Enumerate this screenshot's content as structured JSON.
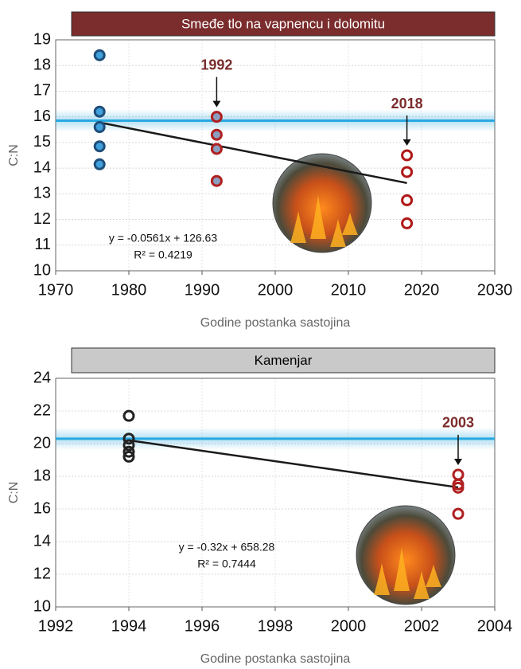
{
  "chart_data": [
    {
      "type": "scatter",
      "title": "Smeđe tlo na vapnencu i dolomitu",
      "title_color": "#7b2c2c",
      "title_text_color": "#ffffff",
      "xlabel": "Godine postanka sastojina",
      "ylabel": "C:N",
      "xlim": [
        1970,
        2030
      ],
      "xticks": [
        1970,
        1980,
        1990,
        2000,
        2010,
        2020,
        2030
      ],
      "ylim": [
        10,
        19
      ],
      "yticks": [
        10,
        11,
        12,
        13,
        14,
        15,
        16,
        17,
        18,
        19
      ],
      "grid": true,
      "series": [
        {
          "color": "#1f4e79",
          "fill": "#3fa0dc",
          "x": [
            1976,
            1976,
            1976,
            1976,
            1976
          ],
          "values": [
            18.4,
            16.2,
            15.6,
            14.85,
            14.15
          ]
        },
        {
          "color": "#b02020",
          "fill": "#8a9fc0",
          "x": [
            1992,
            1992,
            1992,
            1992
          ],
          "values": [
            16.0,
            15.3,
            14.75,
            13.5
          ]
        },
        {
          "color": "#b01818",
          "fill": "#ffffff",
          "x": [
            2018,
            2018,
            2018,
            2018
          ],
          "values": [
            14.5,
            13.85,
            12.75,
            11.85
          ]
        }
      ],
      "reference_line": 15.85,
      "reference_color": "#29a8e0",
      "trendline": {
        "x": [
          1976,
          2018
        ],
        "values": [
          15.78,
          13.42
        ],
        "color": "#1a1a1a"
      },
      "annotations": [
        {
          "label": "1992",
          "x": 1992
        },
        {
          "label": "2018",
          "x": 2018
        }
      ],
      "equation": [
        "y = -0.0561x + 126.63",
        "R² = 0.4219"
      ]
    },
    {
      "type": "scatter",
      "title": "Kamenjar",
      "title_color": "#c9c9c9",
      "title_text_color": "#000000",
      "xlabel": "Godine postanka sastojina",
      "ylabel": "C:N",
      "xlim": [
        1992,
        2004
      ],
      "xticks": [
        1992,
        1994,
        1996,
        1998,
        2000,
        2002,
        2004
      ],
      "ylim": [
        10,
        24
      ],
      "yticks": [
        10,
        12,
        14,
        16,
        18,
        20,
        22,
        24
      ],
      "grid": true,
      "series": [
        {
          "color": "#222222",
          "fill": "none",
          "x": [
            1994,
            1994,
            1994,
            1994,
            1994
          ],
          "values": [
            21.7,
            20.3,
            19.9,
            19.5,
            19.2
          ]
        },
        {
          "color": "#b02020",
          "fill": "none",
          "x": [
            2003,
            2003,
            2003,
            2003
          ],
          "values": [
            18.1,
            17.5,
            17.3,
            15.7
          ]
        }
      ],
      "reference_line": 20.3,
      "reference_color": "#29a8e0",
      "trendline": {
        "x": [
          1994,
          2003
        ],
        "values": [
          20.2,
          17.32
        ],
        "color": "#1a1a1a"
      },
      "annotations": [
        {
          "label": "2003",
          "x": 2003
        }
      ],
      "equation": [
        "y = -0.32x + 658.28",
        "R² = 0.7444"
      ]
    }
  ]
}
